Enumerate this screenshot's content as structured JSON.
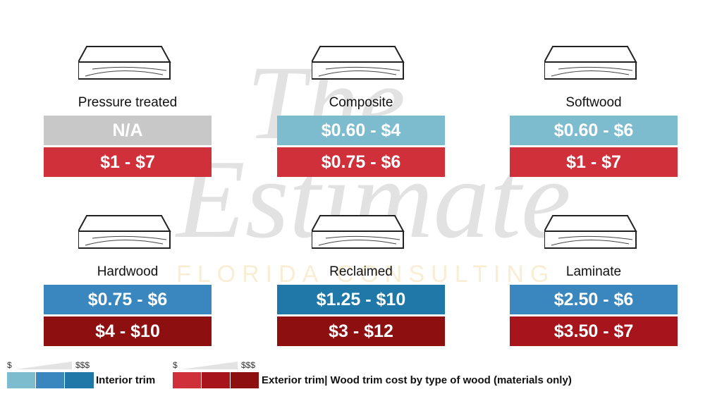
{
  "watermark": [
    "The",
    "Estimate",
    "FLORIDA CONSULTING"
  ],
  "items": [
    {
      "name": "Pressure treated",
      "interior": "N/A",
      "exterior": "$1 - $7"
    },
    {
      "name": "Composite",
      "interior": "$0.60 - $4",
      "exterior": "$0.75 - $6"
    },
    {
      "name": "Softwood",
      "interior": "$0.60 - $6",
      "exterior": "$1 - $7"
    },
    {
      "name": "Hardwood",
      "interior": "$0.75 - $6",
      "exterior": "$4 - $10"
    },
    {
      "name": "Reclaimed",
      "interior": "$1.25 - $10",
      "exterior": "$3 - $12"
    },
    {
      "name": "Laminate",
      "interior": "$2.50 - $6",
      "exterior": "$3.50 - $7"
    }
  ],
  "legend": {
    "interior": {
      "low": "$",
      "high": "$$$",
      "label": "Interior trim"
    },
    "exterior": {
      "low": "$",
      "high": "$$$",
      "label": "Exterior trim| Wood trim cost by type of wood (materials only)"
    }
  }
}
